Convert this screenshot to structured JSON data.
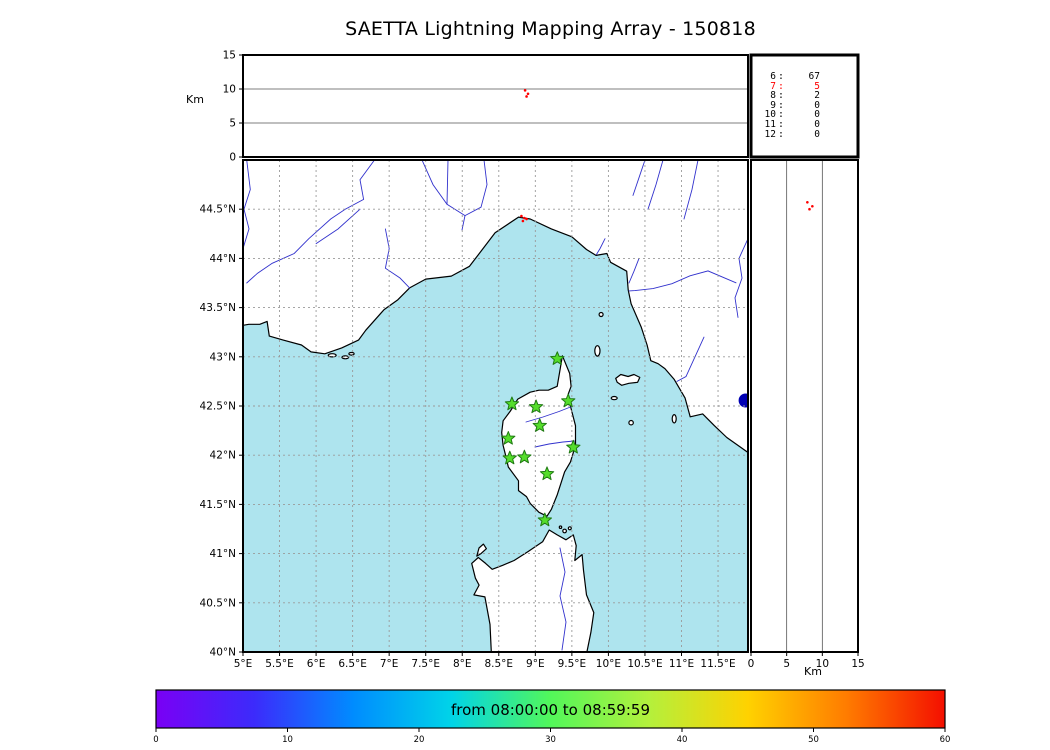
{
  "title": "SAETTA Lightning Mapping Array - 150818",
  "colors": {
    "sea": "#aee4ee",
    "land": "#ffffff",
    "coast": "#000000",
    "river": "#3232cd",
    "lake": "#0000b4",
    "grid": "#9a9a9a",
    "panel_line": "#555555",
    "star_fill": "#55dd2b",
    "star_edge": "#1f7a12",
    "event": "#ff0000",
    "stats_highlight": "#ff0000"
  },
  "axes": {
    "alt_label": "Km",
    "alt_range": [
      0,
      15
    ],
    "lon_range": [
      5,
      11.91
    ],
    "lat_range": [
      40,
      45
    ],
    "alt_ticks": [
      {
        "value": 0,
        "label": "0"
      },
      {
        "value": 5,
        "label": "5"
      },
      {
        "value": 10,
        "label": "10"
      },
      {
        "value": 15,
        "label": "15"
      }
    ],
    "lon_ticks": [
      {
        "value": 5,
        "label": "5°E"
      },
      {
        "value": 5.5,
        "label": "5.5°E"
      },
      {
        "value": 6,
        "label": "6°E"
      },
      {
        "value": 6.5,
        "label": "6.5°E"
      },
      {
        "value": 7,
        "label": "7°E"
      },
      {
        "value": 7.5,
        "label": "7.5°E"
      },
      {
        "value": 8,
        "label": "8°E"
      },
      {
        "value": 8.5,
        "label": "8.5°E"
      },
      {
        "value": 9,
        "label": "9°E"
      },
      {
        "value": 9.5,
        "label": "9.5°E"
      },
      {
        "value": 10,
        "label": "10°E"
      },
      {
        "value": 10.5,
        "label": "10.5°E"
      },
      {
        "value": 11,
        "label": "11°E"
      },
      {
        "value": 11.5,
        "label": "11.5°E"
      }
    ],
    "lat_ticks": [
      {
        "value": 40,
        "label": "40°N"
      },
      {
        "value": 40.5,
        "label": "40.5°N"
      },
      {
        "value": 41,
        "label": "41°N"
      },
      {
        "value": 41.5,
        "label": "41.5°N"
      },
      {
        "value": 42,
        "label": "42°N"
      },
      {
        "value": 42.5,
        "label": "42.5°N"
      },
      {
        "value": 43,
        "label": "43°N"
      },
      {
        "value": 43.5,
        "label": "43.5°N"
      },
      {
        "value": 44,
        "label": "44°N"
      },
      {
        "value": 44.5,
        "label": "44.5°N"
      }
    ]
  },
  "stats_panel": {
    "rows": [
      {
        "alt": "6",
        "count": "67",
        "highlight": false
      },
      {
        "alt": "7",
        "count": "5",
        "highlight": true
      },
      {
        "alt": "8",
        "count": "2",
        "highlight": false
      },
      {
        "alt": "9",
        "count": "0",
        "highlight": false
      },
      {
        "alt": "10",
        "count": "0",
        "highlight": false
      },
      {
        "alt": "11",
        "count": "0",
        "highlight": false
      },
      {
        "alt": "12",
        "count": "0",
        "highlight": false
      }
    ]
  },
  "stations": [
    {
      "lon": 9.3,
      "lat": 42.98
    },
    {
      "lon": 8.68,
      "lat": 42.52
    },
    {
      "lon": 9.01,
      "lat": 42.49
    },
    {
      "lon": 9.45,
      "lat": 42.55
    },
    {
      "lon": 9.06,
      "lat": 42.3
    },
    {
      "lon": 8.63,
      "lat": 42.17
    },
    {
      "lon": 9.52,
      "lat": 42.08
    },
    {
      "lon": 8.65,
      "lat": 41.97
    },
    {
      "lon": 8.85,
      "lat": 41.98
    },
    {
      "lon": 9.16,
      "lat": 41.81
    },
    {
      "lon": 9.13,
      "lat": 41.34
    }
  ],
  "events": {
    "map": [
      {
        "lon": 8.81,
        "lat": 44.43
      },
      {
        "lon": 8.85,
        "lat": 44.41
      },
      {
        "lon": 8.83,
        "lat": 44.38
      },
      {
        "lon": 8.88,
        "lat": 44.4
      }
    ],
    "lon_alt": [
      {
        "lon": 8.86,
        "alt": 9.8
      },
      {
        "lon": 8.9,
        "alt": 9.3
      },
      {
        "lon": 8.88,
        "alt": 8.9
      }
    ],
    "lat_alt": [
      {
        "alt": 7.9,
        "lat": 44.57
      },
      {
        "alt": 8.6,
        "lat": 44.53
      },
      {
        "alt": 8.2,
        "lat": 44.5
      }
    ]
  },
  "colorbar": {
    "label": "from 08:00:00 to 08:59:59",
    "range": [
      0,
      60
    ],
    "ticks": [
      {
        "value": 0,
        "label": "0"
      },
      {
        "value": 10,
        "label": "10"
      },
      {
        "value": 20,
        "label": "20"
      },
      {
        "value": 30,
        "label": "30"
      },
      {
        "value": 40,
        "label": "40"
      },
      {
        "value": 50,
        "label": "50"
      },
      {
        "value": 60,
        "label": "60"
      }
    ],
    "gradient": [
      "#7a00f5",
      "#3c2bfb",
      "#008cff",
      "#00d4e8",
      "#52f75a",
      "#b4f03c",
      "#ffd200",
      "#ff7c00",
      "#f40f00"
    ]
  },
  "chart_data": [
    {
      "type": "scatter",
      "panel": "altitude-vs-longitude",
      "title": "SAETTA Lightning Mapping Array - 150818",
      "ylabel": "Km",
      "ylim": [
        0,
        15
      ],
      "xlim": [
        5,
        11.91
      ],
      "yticks": [
        0,
        5,
        10,
        15
      ],
      "points": [
        [
          8.86,
          9.8
        ],
        [
          8.9,
          9.3
        ],
        [
          8.88,
          8.9
        ]
      ],
      "point_color": "#ff0000",
      "grid": "horizontal lines at 5 and 10 km"
    },
    {
      "type": "table",
      "panel": "source-count-by-altitude-km",
      "columns": [
        "altitude_km",
        "count"
      ],
      "rows": [
        [
          6,
          67
        ],
        [
          7,
          5
        ],
        [
          8,
          2
        ],
        [
          9,
          0
        ],
        [
          10,
          0
        ],
        [
          11,
          0
        ],
        [
          12,
          0
        ]
      ],
      "highlighted_row_index": 1,
      "highlight_color": "#ff0000"
    },
    {
      "type": "scatter",
      "panel": "map-latitude-vs-longitude",
      "region": "Gulf of Lion, Ligurian Sea, Corsica, Elba, Sardinia, Tuscan coast",
      "xlim": [
        5,
        11.91
      ],
      "ylim": [
        40,
        45
      ],
      "xticks": [
        5,
        5.5,
        6,
        6.5,
        7,
        7.5,
        8,
        8.5,
        9,
        9.5,
        10,
        10.5,
        11,
        11.5
      ],
      "yticks": [
        40,
        40.5,
        41,
        41.5,
        42,
        42.5,
        43,
        43.5,
        44,
        44.5
      ],
      "grid": "dashed gray every 0.5 degree",
      "station_markers_green_stars": [
        [
          9.3,
          42.98
        ],
        [
          8.68,
          42.52
        ],
        [
          9.01,
          42.49
        ],
        [
          9.45,
          42.55
        ],
        [
          9.06,
          42.3
        ],
        [
          8.63,
          42.17
        ],
        [
          9.52,
          42.08
        ],
        [
          8.65,
          41.97
        ],
        [
          8.85,
          41.98
        ],
        [
          9.16,
          41.81
        ],
        [
          9.13,
          41.34
        ]
      ],
      "lightning_sources_red": [
        [
          8.81,
          44.43
        ],
        [
          8.85,
          44.41
        ],
        [
          8.83,
          44.38
        ],
        [
          8.88,
          44.4
        ]
      ]
    },
    {
      "type": "scatter",
      "panel": "altitude-vs-latitude",
      "xlabel": "Km",
      "xlim": [
        0,
        15
      ],
      "xticks": [
        0,
        5,
        10,
        15
      ],
      "points": [
        [
          7.9,
          44.57
        ],
        [
          8.6,
          44.53
        ],
        [
          8.2,
          44.5
        ]
      ],
      "point_color": "#ff0000",
      "grid": "vertical lines at 5 and 10 km"
    },
    {
      "type": "colorbar",
      "orientation": "horizontal",
      "label": "from 08:00:00 to 08:59:59",
      "ticks": [
        0,
        10,
        20,
        30,
        40,
        50,
        60
      ],
      "colormap": "rainbow (violet to red)"
    }
  ]
}
